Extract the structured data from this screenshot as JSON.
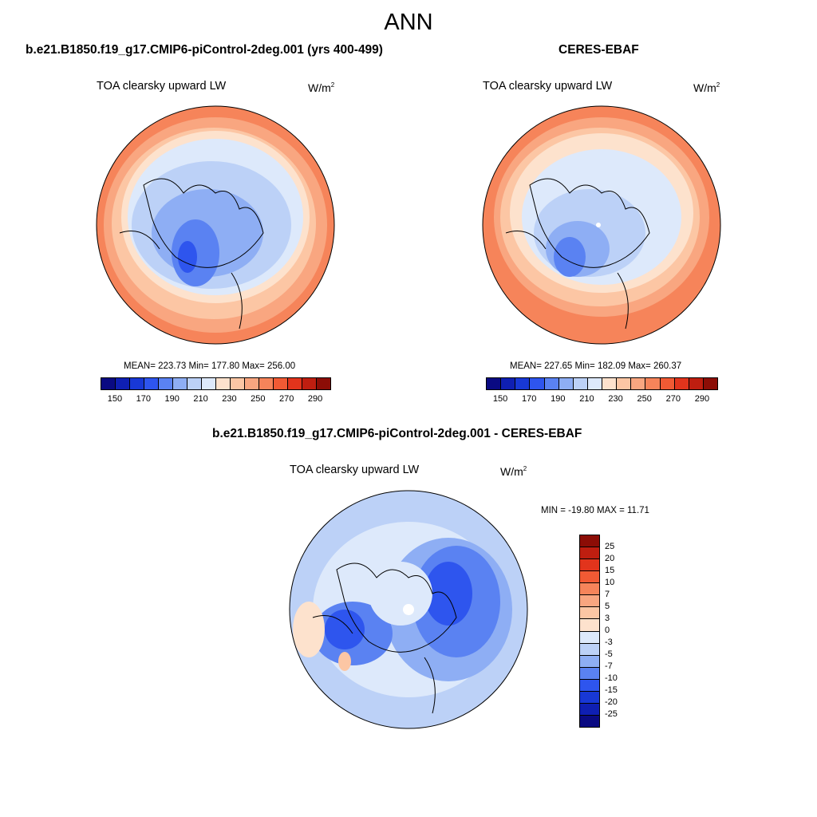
{
  "main_title": "ANN",
  "left_panel": {
    "title": "b.e21.B1850.f19_g17.CMIP6-piControl-2deg.001 (yrs 400-499)",
    "variable": "TOA clearsky upward LW",
    "units_base": "W/m",
    "units_exp": "2",
    "stats": "MEAN= 223.73  Min= 177.80  Max= 256.00"
  },
  "right_panel": {
    "title": "CERES-EBAF",
    "variable": "TOA clearsky upward LW",
    "units_base": "W/m",
    "units_exp": "2",
    "stats": "MEAN= 227.65  Min= 182.09  Max= 260.37"
  },
  "diff_panel": {
    "title": "b.e21.B1850.f19_g17.CMIP6-piControl-2deg.001 - CERES-EBAF",
    "variable": "TOA clearsky upward LW",
    "units_base": "W/m",
    "units_exp": "2",
    "stats": "MIN = -19.80 MAX =  11.71"
  },
  "colorbar_abs": {
    "colors": [
      "#0a0a82",
      "#0f1fb3",
      "#1838d6",
      "#2e55ee",
      "#5a82f2",
      "#8eaef4",
      "#bcd1f7",
      "#dde9fb",
      "#fde2cd",
      "#fcc6a4",
      "#f9a680",
      "#f6845a",
      "#f15a34",
      "#e2341c",
      "#bf1e10",
      "#8c0d06"
    ],
    "labels": [
      "150",
      "170",
      "190",
      "210",
      "230",
      "250",
      "270",
      "290"
    ]
  },
  "colorbar_diff": {
    "colors": [
      "#8c0d06",
      "#bf1e10",
      "#e2341c",
      "#f15a34",
      "#f6845a",
      "#f9a680",
      "#fcc6a4",
      "#fde2cd",
      "#dde9fb",
      "#bcd1f7",
      "#8eaef4",
      "#5a82f2",
      "#2e55ee",
      "#1838d6",
      "#0f1fb3",
      "#0a0a82"
    ],
    "labels": [
      "25",
      "20",
      "15",
      "10",
      "7",
      "5",
      "3",
      "0",
      "-3",
      "-5",
      "-7",
      "-10",
      "-15",
      "-20",
      "-25"
    ]
  },
  "map_palette": {
    "land_line": "#000000",
    "deep_blue": "#2e55ee",
    "mid_blue": "#5a82f2",
    "light_blue": "#8eaef4",
    "pale_blue": "#bcd1f7",
    "very_pale_blue": "#dde9fb",
    "peach": "#fde2cd",
    "light_orange": "#fcc6a4",
    "orange": "#f9a680",
    "dark_orange": "#f6845a",
    "pole_white": "#ffffff"
  }
}
